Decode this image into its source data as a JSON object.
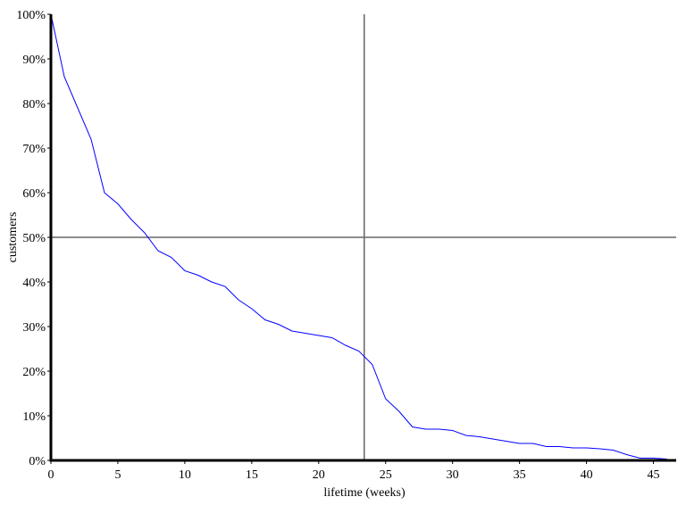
{
  "chart_data": {
    "type": "line",
    "x_label": "lifetime (weeks)",
    "y_label": "customers",
    "x": [
      0,
      1,
      2,
      3,
      4,
      5,
      6,
      7,
      8,
      9,
      10,
      11,
      12,
      13,
      14,
      15,
      16,
      17,
      18,
      19,
      20,
      21,
      22,
      23,
      24,
      25,
      26,
      27,
      28,
      29,
      30,
      31,
      32,
      33,
      34,
      35,
      36,
      37,
      38,
      39,
      40,
      41,
      42,
      43,
      44,
      45,
      46
    ],
    "series": [
      {
        "color": "#0000ff",
        "values": [
          100,
          86,
          79,
          72,
          60,
          57.5,
          54,
          51,
          47,
          45.5,
          42.5,
          41.5,
          40,
          39,
          36,
          34,
          31.5,
          30.5,
          29,
          28.5,
          28,
          27.5,
          25.8,
          24.5,
          21.5,
          13.8,
          11,
          7.5,
          7,
          7,
          6.7,
          5.6,
          5.3,
          4.8,
          4.3,
          3.8,
          3.8,
          3.1,
          3.1,
          2.8,
          2.8,
          2.6,
          2.3,
          1.3,
          0.5,
          0.5,
          0.3
        ]
      }
    ],
    "xlim": [
      0,
      46.7
    ],
    "ylim": [
      0,
      100
    ],
    "xticks": [
      0,
      5,
      10,
      15,
      20,
      25,
      30,
      35,
      40,
      45
    ],
    "yticks": [
      {
        "value": 0,
        "label": "0%"
      },
      {
        "value": 10,
        "label": "10%"
      },
      {
        "value": 20,
        "label": "20%"
      },
      {
        "value": 30,
        "label": "30%"
      },
      {
        "value": 40,
        "label": "40%"
      },
      {
        "value": 50,
        "label": "50%"
      },
      {
        "value": 60,
        "label": "60%"
      },
      {
        "value": 70,
        "label": "70%"
      },
      {
        "value": 80,
        "label": "80%"
      },
      {
        "value": 90,
        "label": "90%"
      },
      {
        "value": 100,
        "label": "100%"
      }
    ],
    "vline": 23.4,
    "hline": 50
  }
}
